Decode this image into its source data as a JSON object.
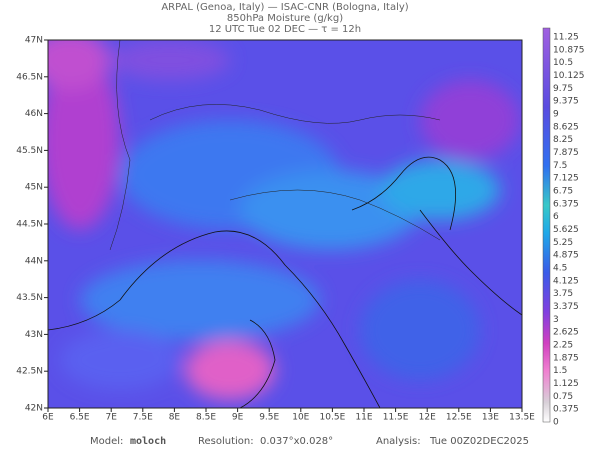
{
  "header": {
    "line1": "ARPAL (Genoa, Italy)  —  ISAC-CNR (Bologna, Italy)",
    "line2": "850hPa Moisture (g/kg)",
    "line3": "12 UTC Tue 02 DEC  —  τ = 12h"
  },
  "map": {
    "lat_labels": [
      "47N",
      "46.5N",
      "46N",
      "45.5N",
      "45N",
      "44.5N",
      "44N",
      "43.5N",
      "43N",
      "42.5N",
      "42N"
    ],
    "lon_labels": [
      "6E",
      "6.5E",
      "7E",
      "7.5E",
      "8E",
      "8.5E",
      "9E",
      "9.5E",
      "10E",
      "10.5E",
      "11E",
      "11.5E",
      "12E",
      "12.5E",
      "13E",
      "13.5E"
    ]
  },
  "colorbar": {
    "labels": [
      "11.25",
      "10.875",
      "10.5",
      "10.125",
      "9.75",
      "9.375",
      "9",
      "8.625",
      "8.25",
      "7.875",
      "7.5",
      "7.125",
      "6.75",
      "6.375",
      "6",
      "5.625",
      "5.25",
      "4.875",
      "4.5",
      "4.125",
      "3.75",
      "3.375",
      "3",
      "2.625",
      "2.25",
      "1.875",
      "1.5",
      "1.125",
      "0.75",
      "0.375",
      "0"
    ]
  },
  "footer": {
    "model_label": "Model:",
    "model": "moloch",
    "resolution_label": "Resolution:",
    "resolution": "0.037°x0.028°",
    "analysis_label": "Analysis:",
    "analysis": "Tue 00Z02DEC2025"
  }
}
